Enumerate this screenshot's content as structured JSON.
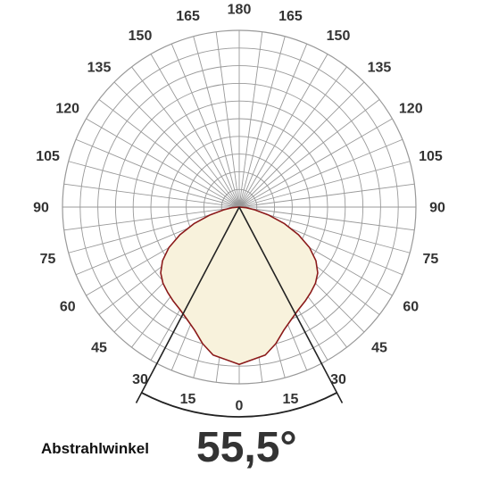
{
  "chart_data": {
    "type": "polar",
    "angle_ticks": {
      "left": [
        "180",
        "165",
        "150",
        "135",
        "120",
        "105",
        "90",
        "75",
        "60",
        "45",
        "30",
        "15",
        "0"
      ],
      "right": [
        "165",
        "150",
        "135",
        "120",
        "105",
        "90",
        "75",
        "60",
        "45",
        "30",
        "15"
      ]
    },
    "angles_deg": [
      0,
      15,
      30,
      45,
      60,
      75,
      90,
      105,
      120,
      135,
      150,
      165,
      180
    ],
    "rings": 10,
    "radial_lines_step_deg": 7.5,
    "distribution": {
      "angle_deg": [
        0,
        10,
        15,
        20,
        25,
        30,
        35,
        40,
        45,
        50,
        55,
        60,
        65,
        70,
        75,
        80,
        85,
        90
      ],
      "relative_intensity": [
        0.89,
        0.85,
        0.8,
        0.74,
        0.7,
        0.67,
        0.65,
        0.63,
        0.61,
        0.58,
        0.53,
        0.46,
        0.37,
        0.27,
        0.17,
        0.09,
        0.04,
        0.0
      ]
    },
    "beam_angle_deg": 55.5,
    "colors": {
      "grid": "#999999",
      "curve": "#8b1a1a",
      "fill": "#f8f2dc",
      "beam_lines": "#222222"
    }
  },
  "beam": {
    "label": "Abstrahlwinkel",
    "value": "55,5°"
  }
}
